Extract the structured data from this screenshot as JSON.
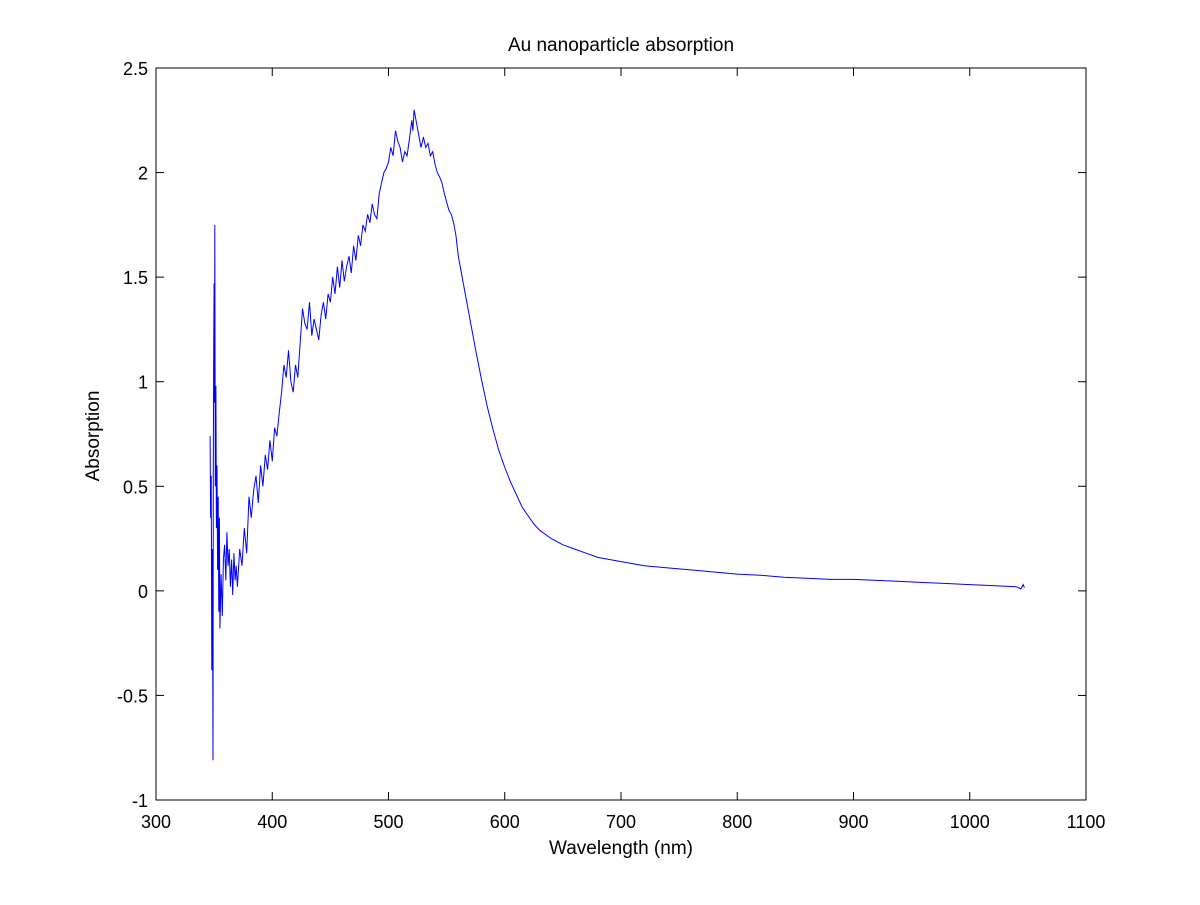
{
  "chart_data": {
    "type": "line",
    "title": "Au nanoparticle absorption",
    "xlabel": "Wavelength (nm)",
    "ylabel": "Absorption",
    "xlim": [
      300,
      1100
    ],
    "ylim": [
      -1,
      2.5
    ],
    "grid": false,
    "x_ticks": [
      300,
      400,
      500,
      600,
      700,
      800,
      900,
      1000,
      1100
    ],
    "y_ticks": [
      -1,
      -0.5,
      0,
      0.5,
      1,
      1.5,
      2,
      2.5
    ],
    "series": [
      {
        "color": "#0000ff",
        "points": [
          [
            346.5,
            0.74
          ],
          [
            347,
            0.35
          ],
          [
            347.5,
            0.55
          ],
          [
            348,
            -0.38
          ],
          [
            348.5,
            0.2
          ],
          [
            349,
            -0.81
          ],
          [
            349.3,
            0.6
          ],
          [
            349.6,
            1.15
          ],
          [
            350,
            1.47
          ],
          [
            350.3,
            0.9
          ],
          [
            350.6,
            1.75
          ],
          [
            351,
            0.5
          ],
          [
            351.5,
            0.98
          ],
          [
            352,
            0.3
          ],
          [
            352.5,
            0.6
          ],
          [
            353,
            0.1
          ],
          [
            353.5,
            0.45
          ],
          [
            354,
            -0.1
          ],
          [
            354.5,
            0.35
          ],
          [
            355,
            -0.18
          ],
          [
            356,
            0.08
          ],
          [
            357,
            -0.12
          ],
          [
            358,
            0.15
          ],
          [
            359,
            0.22
          ],
          [
            360,
            0.05
          ],
          [
            361,
            0.28
          ],
          [
            362,
            0.12
          ],
          [
            363,
            0.2
          ],
          [
            364,
            0.02
          ],
          [
            365,
            0.15
          ],
          [
            366,
            -0.02
          ],
          [
            367,
            0.18
          ],
          [
            368,
            0.05
          ],
          [
            369,
            0.12
          ],
          [
            370,
            0.02
          ],
          [
            372,
            0.2
          ],
          [
            374,
            0.12
          ],
          [
            376,
            0.3
          ],
          [
            378,
            0.18
          ],
          [
            380,
            0.45
          ],
          [
            382,
            0.35
          ],
          [
            384,
            0.48
          ],
          [
            386,
            0.55
          ],
          [
            388,
            0.42
          ],
          [
            390,
            0.6
          ],
          [
            392,
            0.5
          ],
          [
            394,
            0.65
          ],
          [
            396,
            0.58
          ],
          [
            398,
            0.72
          ],
          [
            400,
            0.62
          ],
          [
            402,
            0.78
          ],
          [
            404,
            0.74
          ],
          [
            406,
            0.85
          ],
          [
            408,
            0.95
          ],
          [
            410,
            1.08
          ],
          [
            412,
            1.02
          ],
          [
            414,
            1.15
          ],
          [
            416,
            1.0
          ],
          [
            418,
            0.95
          ],
          [
            420,
            1.08
          ],
          [
            422,
            1.02
          ],
          [
            424,
            1.18
          ],
          [
            426,
            1.35
          ],
          [
            428,
            1.28
          ],
          [
            430,
            1.25
          ],
          [
            432,
            1.38
          ],
          [
            434,
            1.22
          ],
          [
            436,
            1.3
          ],
          [
            438,
            1.25
          ],
          [
            440,
            1.2
          ],
          [
            442,
            1.32
          ],
          [
            444,
            1.38
          ],
          [
            446,
            1.3
          ],
          [
            448,
            1.42
          ],
          [
            450,
            1.38
          ],
          [
            452,
            1.5
          ],
          [
            454,
            1.42
          ],
          [
            456,
            1.55
          ],
          [
            458,
            1.45
          ],
          [
            460,
            1.58
          ],
          [
            462,
            1.48
          ],
          [
            464,
            1.55
          ],
          [
            466,
            1.6
          ],
          [
            468,
            1.52
          ],
          [
            470,
            1.65
          ],
          [
            472,
            1.58
          ],
          [
            474,
            1.7
          ],
          [
            476,
            1.65
          ],
          [
            478,
            1.75
          ],
          [
            480,
            1.72
          ],
          [
            482,
            1.8
          ],
          [
            484,
            1.76
          ],
          [
            486,
            1.85
          ],
          [
            488,
            1.8
          ],
          [
            490,
            1.78
          ],
          [
            492,
            1.9
          ],
          [
            494,
            1.95
          ],
          [
            496,
            2.0
          ],
          [
            498,
            2.02
          ],
          [
            500,
            2.05
          ],
          [
            502,
            2.12
          ],
          [
            504,
            2.08
          ],
          [
            506,
            2.2
          ],
          [
            508,
            2.15
          ],
          [
            510,
            2.12
          ],
          [
            512,
            2.05
          ],
          [
            514,
            2.1
          ],
          [
            516,
            2.08
          ],
          [
            518,
            2.16
          ],
          [
            520,
            2.25
          ],
          [
            521,
            2.2
          ],
          [
            522,
            2.3
          ],
          [
            524,
            2.24
          ],
          [
            526,
            2.18
          ],
          [
            528,
            2.12
          ],
          [
            530,
            2.17
          ],
          [
            532,
            2.12
          ],
          [
            534,
            2.14
          ],
          [
            536,
            2.08
          ],
          [
            538,
            2.1
          ],
          [
            540,
            2.04
          ],
          [
            542,
            2.0
          ],
          [
            544,
            1.98
          ],
          [
            546,
            1.95
          ],
          [
            548,
            1.9
          ],
          [
            550,
            1.86
          ],
          [
            552,
            1.82
          ],
          [
            554,
            1.8
          ],
          [
            556,
            1.76
          ],
          [
            558,
            1.7
          ],
          [
            560,
            1.6
          ],
          [
            565,
            1.45
          ],
          [
            570,
            1.3
          ],
          [
            575,
            1.15
          ],
          [
            580,
            1.01
          ],
          [
            585,
            0.88
          ],
          [
            590,
            0.77
          ],
          [
            595,
            0.67
          ],
          [
            600,
            0.59
          ],
          [
            605,
            0.52
          ],
          [
            610,
            0.46
          ],
          [
            615,
            0.4
          ],
          [
            620,
            0.36
          ],
          [
            625,
            0.32
          ],
          [
            630,
            0.29
          ],
          [
            640,
            0.25
          ],
          [
            650,
            0.22
          ],
          [
            660,
            0.2
          ],
          [
            670,
            0.18
          ],
          [
            680,
            0.16
          ],
          [
            690,
            0.15
          ],
          [
            700,
            0.14
          ],
          [
            720,
            0.12
          ],
          [
            740,
            0.11
          ],
          [
            760,
            0.1
          ],
          [
            780,
            0.09
          ],
          [
            800,
            0.08
          ],
          [
            820,
            0.075
          ],
          [
            840,
            0.065
          ],
          [
            860,
            0.06
          ],
          [
            880,
            0.055
          ],
          [
            900,
            0.055
          ],
          [
            920,
            0.05
          ],
          [
            940,
            0.045
          ],
          [
            960,
            0.04
          ],
          [
            980,
            0.035
          ],
          [
            1000,
            0.03
          ],
          [
            1020,
            0.025
          ],
          [
            1040,
            0.02
          ],
          [
            1044,
            0.01
          ],
          [
            1046,
            0.03
          ],
          [
            1047,
            0.015
          ]
        ]
      }
    ]
  }
}
